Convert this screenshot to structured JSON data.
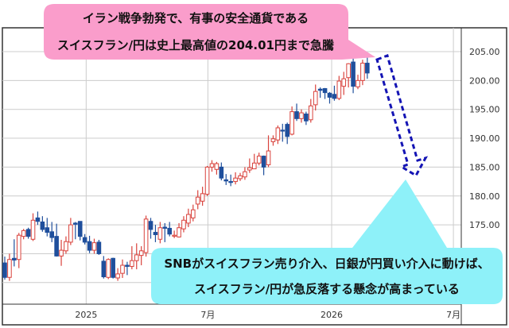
{
  "chart_data": {
    "type": "candlestick",
    "title": "",
    "xlabel": "",
    "ylabel": "",
    "interval": "weekly",
    "ylim": [
      162,
      209
    ],
    "yticks": [
      "205.00",
      "200.00",
      "195.00",
      "190.00",
      "185.00",
      "180.00",
      "175.00"
    ],
    "ytick_values": [
      205,
      200,
      195,
      190,
      185,
      180,
      175
    ],
    "xticks": [
      {
        "label": "2025",
        "date": "2025-01-01"
      },
      {
        "label": "7月",
        "date": "2025-07-01"
      },
      {
        "label": "2026",
        "date": "2026-01-01"
      },
      {
        "label": "7月",
        "date": "2026-07-01"
      }
    ],
    "grid": true,
    "colors": {
      "up": "#d9423c",
      "down": "#1f4f9c",
      "grid": "#cccccc"
    },
    "candles_columns": [
      "date",
      "open",
      "high",
      "low",
      "close"
    ],
    "candles": [
      [
        "2024-09-02",
        168.4,
        169.5,
        165.5,
        165.9
      ],
      [
        "2024-09-09",
        165.9,
        170.0,
        165.3,
        169.0
      ],
      [
        "2024-09-16",
        169.2,
        172.5,
        167.8,
        168.9
      ],
      [
        "2024-09-23",
        169.0,
        173.6,
        167.5,
        173.2
      ],
      [
        "2024-09-30",
        173.0,
        174.3,
        172.5,
        174.0
      ],
      [
        "2024-10-07",
        174.2,
        174.5,
        172.6,
        173.0
      ],
      [
        "2024-10-14",
        172.5,
        177.0,
        172.2,
        175.8
      ],
      [
        "2024-10-21",
        176.2,
        177.3,
        175.0,
        175.6
      ],
      [
        "2024-10-28",
        175.5,
        176.5,
        173.8,
        174.2
      ],
      [
        "2024-11-04",
        174.5,
        176.2,
        173.0,
        173.7
      ],
      [
        "2024-11-11",
        173.8,
        175.5,
        172.0,
        172.8
      ],
      [
        "2024-11-18",
        173.0,
        175.2,
        169.5,
        169.6
      ],
      [
        "2024-11-25",
        169.6,
        172.4,
        167.9,
        170.6
      ],
      [
        "2024-12-02",
        170.5,
        173.0,
        170.0,
        172.1
      ],
      [
        "2024-12-09",
        172.0,
        176.2,
        171.5,
        175.0
      ],
      [
        "2024-12-16",
        175.3,
        175.5,
        172.5,
        175.1
      ],
      [
        "2024-12-23",
        175.6,
        175.6,
        172.3,
        173.0
      ],
      [
        "2024-12-30",
        172.8,
        173.4,
        171.6,
        172.0
      ],
      [
        "2025-01-06",
        172.1,
        173.1,
        170.1,
        170.6
      ],
      [
        "2025-01-13",
        170.6,
        172.6,
        170.0,
        171.9
      ],
      [
        "2025-01-20",
        172.0,
        172.4,
        169.8,
        170.0
      ],
      [
        "2025-01-27",
        168.7,
        169.6,
        165.7,
        166.0
      ],
      [
        "2025-02-03",
        165.9,
        169.2,
        165.6,
        169.0
      ],
      [
        "2025-02-10",
        169.2,
        169.3,
        165.7,
        165.9
      ],
      [
        "2025-02-17",
        165.8,
        167.5,
        165.3,
        166.5
      ],
      [
        "2025-02-24",
        166.6,
        169.0,
        165.8,
        168.0
      ],
      [
        "2025-03-03",
        168.0,
        168.6,
        166.3,
        167.8
      ],
      [
        "2025-03-10",
        167.8,
        171.3,
        167.3,
        168.8
      ],
      [
        "2025-03-17",
        168.8,
        171.8,
        167.3,
        169.8
      ],
      [
        "2025-03-24",
        169.7,
        171.3,
        168.0,
        170.5
      ],
      [
        "2025-03-31",
        170.2,
        176.6,
        169.5,
        176.0
      ],
      [
        "2025-04-07",
        175.6,
        176.2,
        172.6,
        174.2
      ],
      [
        "2025-04-14",
        173.7,
        175.0,
        172.0,
        173.3
      ],
      [
        "2025-04-21",
        172.5,
        175.5,
        171.8,
        174.5
      ],
      [
        "2025-04-28",
        174.6,
        175.3,
        172.0,
        174.4
      ],
      [
        "2025-05-05",
        174.4,
        175.5,
        173.0,
        173.4
      ],
      [
        "2025-05-12",
        173.2,
        174.0,
        172.7,
        173.2
      ],
      [
        "2025-05-19",
        172.9,
        175.3,
        172.8,
        174.5
      ],
      [
        "2025-05-26",
        174.3,
        176.5,
        173.7,
        175.8
      ],
      [
        "2025-06-02",
        175.3,
        177.8,
        174.6,
        176.8
      ],
      [
        "2025-06-09",
        176.2,
        178.5,
        175.6,
        177.6
      ],
      [
        "2025-06-16",
        178.6,
        181.0,
        177.7,
        179.8
      ],
      [
        "2025-06-23",
        179.1,
        181.6,
        178.3,
        180.4
      ],
      [
        "2025-06-30",
        180.3,
        185.2,
        180.0,
        185.0
      ],
      [
        "2025-07-07",
        185.0,
        186.2,
        184.2,
        185.6
      ],
      [
        "2025-07-14",
        184.6,
        185.9,
        183.7,
        185.6
      ],
      [
        "2025-07-21",
        185.0,
        185.8,
        182.7,
        183.1
      ],
      [
        "2025-07-28",
        182.8,
        183.8,
        181.9,
        182.6
      ],
      [
        "2025-08-04",
        182.5,
        183.7,
        181.7,
        182.4
      ],
      [
        "2025-08-11",
        182.5,
        184.1,
        182.0,
        183.1
      ],
      [
        "2025-08-18",
        183.0,
        184.0,
        182.6,
        183.5
      ],
      [
        "2025-08-25",
        183.3,
        185.0,
        182.8,
        184.2
      ],
      [
        "2025-09-01",
        184.5,
        186.5,
        184.0,
        184.9
      ],
      [
        "2025-09-08",
        184.7,
        187.3,
        184.7,
        185.7
      ],
      [
        "2025-09-15",
        185.7,
        187.5,
        185.3,
        186.9
      ],
      [
        "2025-09-22",
        186.9,
        187.0,
        183.6,
        185.0
      ],
      [
        "2025-09-29",
        185.4,
        190.5,
        185.0,
        187.8
      ],
      [
        "2025-10-06",
        189.4,
        190.5,
        188.7,
        189.9
      ],
      [
        "2025-10-13",
        189.7,
        192.2,
        189.0,
        191.8
      ],
      [
        "2025-10-20",
        191.4,
        192.5,
        189.4,
        191.3
      ],
      [
        "2025-10-27",
        192.4,
        192.7,
        189.0,
        190.3
      ],
      [
        "2025-11-03",
        190.7,
        195.5,
        190.5,
        194.6
      ],
      [
        "2025-11-10",
        194.6,
        196.0,
        193.0,
        193.4
      ],
      [
        "2025-11-17",
        193.4,
        195.0,
        192.7,
        194.4
      ],
      [
        "2025-11-24",
        194.2,
        194.6,
        192.3,
        193.0
      ],
      [
        "2025-12-01",
        193.2,
        196.8,
        192.7,
        195.6
      ],
      [
        "2025-12-08",
        195.8,
        199.3,
        194.8,
        198.1
      ],
      [
        "2025-12-15",
        198.5,
        198.8,
        197.0,
        198.3
      ],
      [
        "2025-12-22",
        198.6,
        198.7,
        196.8,
        197.9
      ],
      [
        "2025-12-29",
        197.8,
        198.0,
        196.0,
        197.1
      ],
      [
        "2026-01-05",
        197.6,
        199.1,
        196.5,
        196.9
      ],
      [
        "2026-01-12",
        196.9,
        200.8,
        196.6,
        199.9
      ],
      [
        "2026-01-19",
        199.0,
        201.5,
        197.5,
        200.3
      ],
      [
        "2026-01-26",
        200.5,
        203.0,
        198.8,
        202.9
      ],
      [
        "2026-02-02",
        203.2,
        204.0,
        197.8,
        199.0
      ],
      [
        "2026-02-09",
        198.9,
        201.0,
        198.5,
        200.0
      ],
      [
        "2026-02-16",
        200.0,
        203.6,
        199.2,
        203.0
      ],
      [
        "2026-02-23",
        203.0,
        204.01,
        200.3,
        201.3
      ]
    ],
    "annotations": {
      "top": {
        "lines": [
          "イラン戦争勃発で、有事の安全通貨である",
          "スイスフラン/円は史上最高値の204.01円まで急騰"
        ],
        "color": "#fa9dcb"
      },
      "bottom": {
        "lines": [
          "SNBがスイスフラン売り介入、日銀が円買い介入に動けば、",
          "スイスフラン/円が急反落する懸念が高まっている"
        ],
        "color": "#8ef1f9"
      },
      "arrow": {
        "style": "dashed",
        "direction": "down",
        "color": "#1414b4"
      }
    }
  }
}
